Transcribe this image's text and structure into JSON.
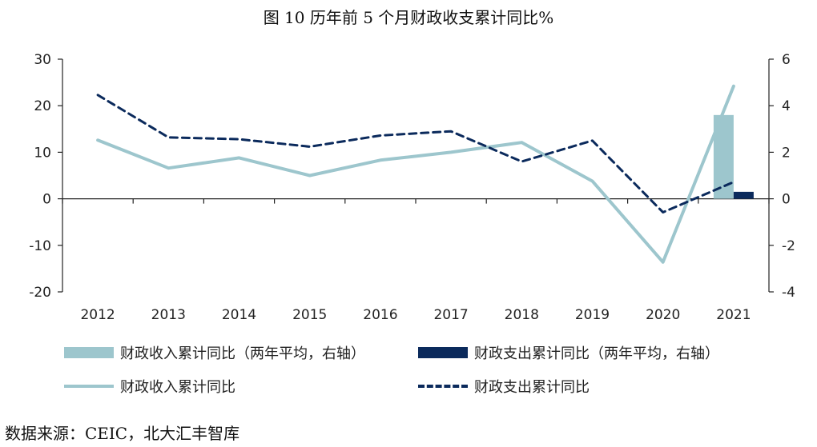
{
  "title": "图 10 历年前 5 个月财政收支累计同比%",
  "source": "数据来源：CEIC，北大汇丰智库",
  "colors": {
    "light": "#9dc6cd",
    "dark": "#0b2a5c"
  },
  "chart_data": {
    "type": "line",
    "categories": [
      "2012",
      "2013",
      "2014",
      "2015",
      "2016",
      "2017",
      "2018",
      "2019",
      "2020",
      "2021"
    ],
    "y_left": {
      "min": -20,
      "max": 30,
      "step": 10,
      "ticks": [
        "30",
        "20",
        "10",
        "0",
        "-10",
        "-20"
      ]
    },
    "y_right": {
      "min": -4,
      "max": 6,
      "step": 2,
      "ticks": [
        "6",
        "4",
        "2",
        "0",
        "-2",
        "-4"
      ]
    },
    "grid": false,
    "legend_position": "bottom",
    "series": [
      {
        "name": "财政收入累计同比（两年平均，右轴）",
        "type": "bar",
        "axis": "right",
        "values": [
          null,
          null,
          null,
          null,
          null,
          null,
          null,
          null,
          null,
          3.6
        ],
        "color": "#9dc6cd"
      },
      {
        "name": "财政支出累计同比（两年平均，右轴）",
        "type": "bar",
        "axis": "right",
        "values": [
          null,
          null,
          null,
          null,
          null,
          null,
          null,
          null,
          null,
          0.3
        ],
        "color": "#0b2a5c"
      },
      {
        "name": "财政收入累计同比",
        "type": "line",
        "axis": "left",
        "dash": false,
        "values": [
          12.6,
          6.6,
          8.8,
          5.0,
          8.3,
          10.0,
          12.1,
          3.8,
          -13.6,
          24.2
        ],
        "color": "#9dc6cd"
      },
      {
        "name": "财政支出累计同比",
        "type": "line",
        "axis": "left",
        "dash": true,
        "values": [
          22.3,
          13.2,
          12.8,
          11.2,
          13.6,
          14.5,
          8.0,
          12.5,
          -2.9,
          3.6
        ],
        "color": "#0b2a5c"
      }
    ]
  }
}
